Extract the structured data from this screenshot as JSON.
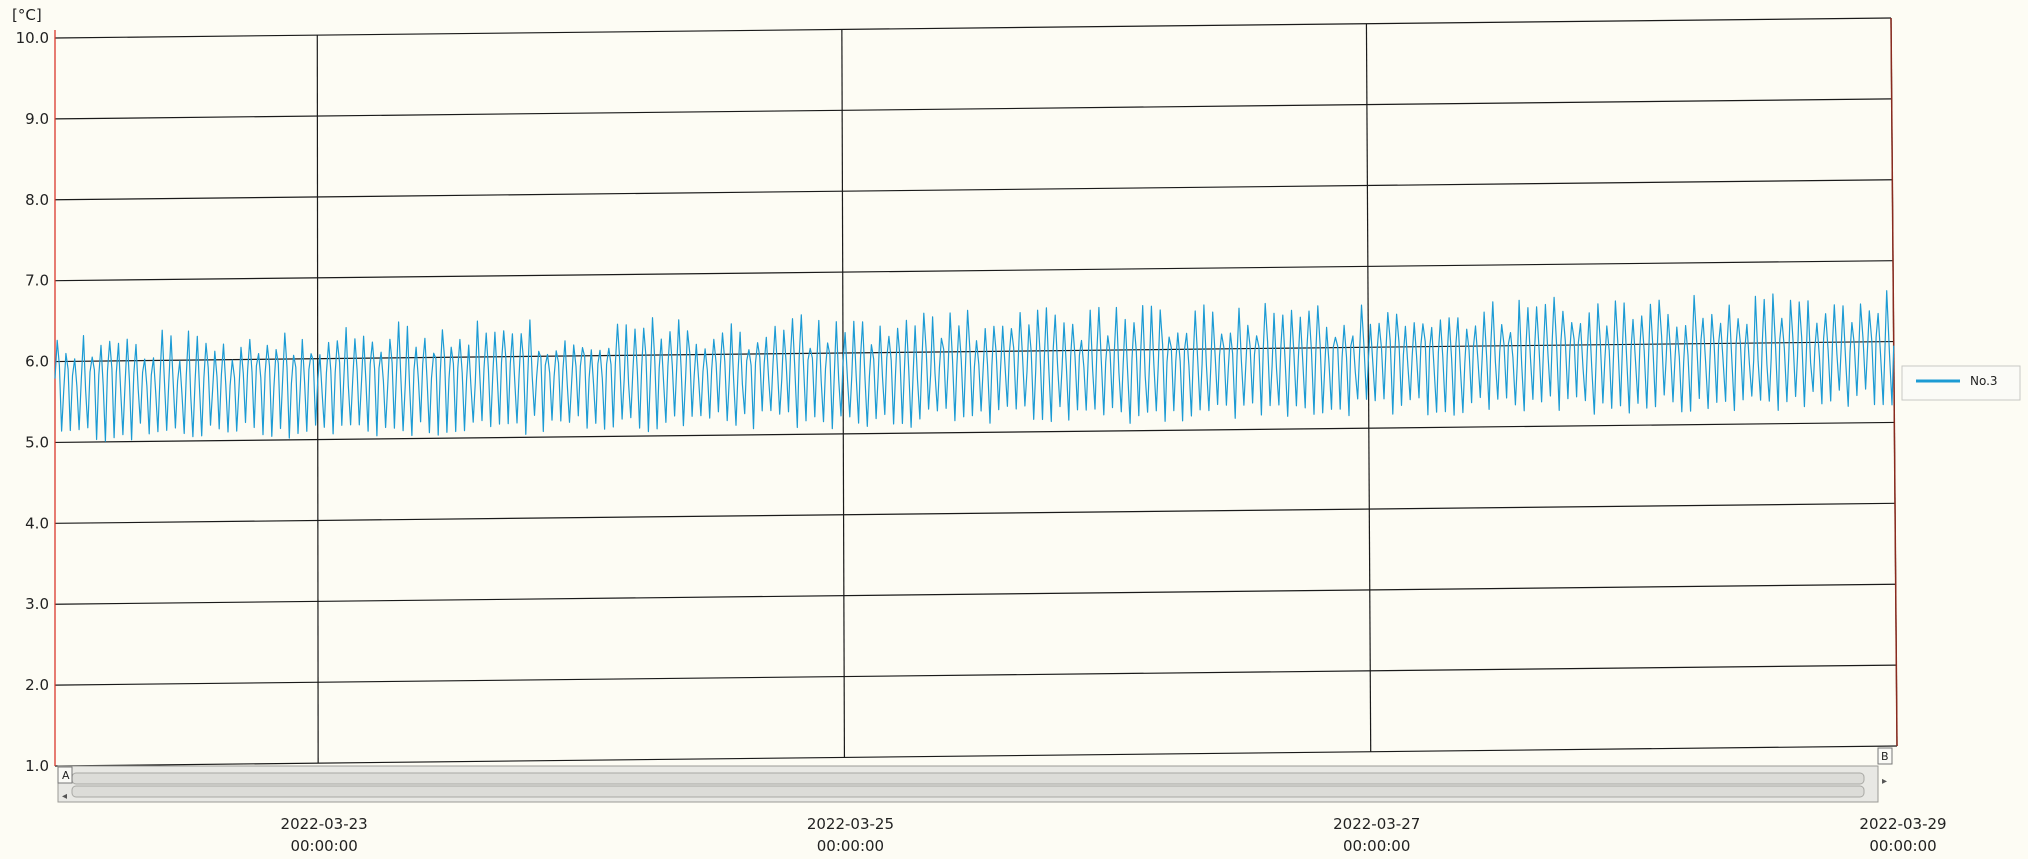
{
  "chart_data": {
    "type": "line",
    "title": "",
    "xlabel": "",
    "ylabel": "[°C]",
    "ylim": [
      1.0,
      10.0
    ],
    "yticks": [
      "10.0",
      "9.0",
      "8.0",
      "7.0",
      "6.0",
      "5.0",
      "4.0",
      "3.0",
      "2.0",
      "1.0"
    ],
    "xlim": [
      "2022-03-22 00:00:00",
      "2022-03-29 00:00:00"
    ],
    "xticks": [
      {
        "date": "2022-03-23",
        "time": "00:00:00"
      },
      {
        "date": "2022-03-25",
        "time": "00:00:00"
      },
      {
        "date": "2022-03-27",
        "time": "00:00:00"
      },
      {
        "date": "2022-03-29",
        "time": "00:00:00"
      }
    ],
    "grid": true,
    "legend_position": "right",
    "series": [
      {
        "name": "No.3",
        "color": "#1c9bd4",
        "pattern": "cyclic oscillation",
        "mean_start": 5.75,
        "mean_end": 5.95,
        "low_start": 5.05,
        "low_end": 5.25,
        "high_start": 6.4,
        "high_end": 6.65,
        "cycles": 210
      }
    ]
  },
  "scrollbar": {
    "left_marker": "A",
    "right_marker": "B"
  }
}
